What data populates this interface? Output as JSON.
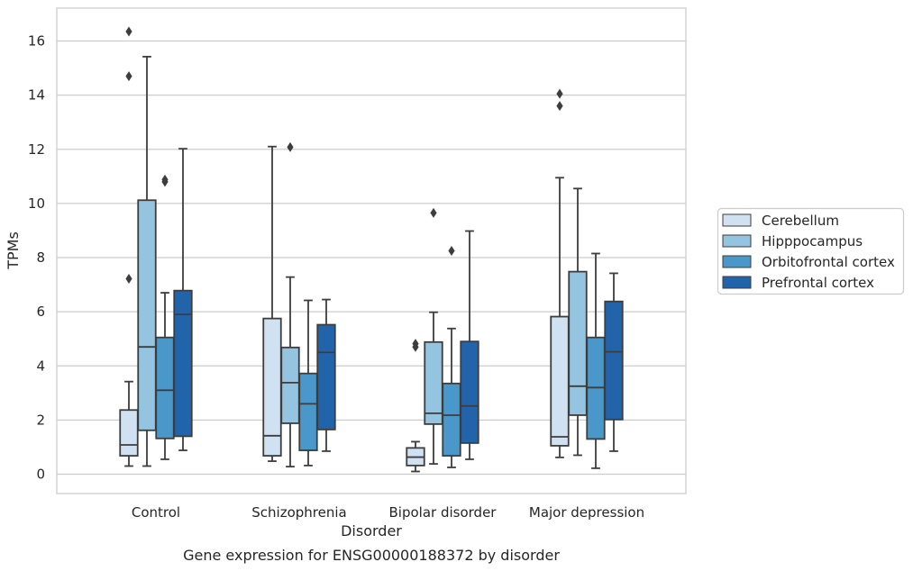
{
  "chart_data": {
    "type": "box",
    "title": "",
    "caption": "Gene expression for ENSG00000188372 by disorder",
    "xlabel": "Disorder",
    "ylabel": "TPMs",
    "categories": [
      "Control",
      "Schizophrenia",
      "Bipolar disorder",
      "Major depression"
    ],
    "ylim": [
      -0.7,
      17.2
    ],
    "yticks": [
      0,
      2,
      4,
      6,
      8,
      10,
      12,
      14,
      16
    ],
    "grid": "horizontal",
    "legend_position": "right",
    "series": [
      {
        "name": "Cerebellum",
        "color": "#d0e1f2",
        "boxes": [
          {
            "whislo": 0.3,
            "q1": 0.68,
            "med": 1.08,
            "q3": 2.37,
            "whishi": 3.42,
            "fliers": [
              7.22,
              14.7,
              16.35
            ]
          },
          {
            "whislo": 0.48,
            "q1": 0.68,
            "med": 1.42,
            "q3": 5.75,
            "whishi": 12.1,
            "fliers": []
          },
          {
            "whislo": 0.1,
            "q1": 0.32,
            "med": 0.63,
            "q3": 0.97,
            "whishi": 1.2,
            "fliers": [
              4.7,
              4.82
            ]
          },
          {
            "whislo": 0.62,
            "q1": 1.05,
            "med": 1.38,
            "q3": 5.82,
            "whishi": 10.95,
            "fliers": [
              13.6,
              14.05
            ]
          }
        ]
      },
      {
        "name": "Hipppocampus",
        "color": "#94c4df",
        "boxes": [
          {
            "whislo": 0.3,
            "q1": 1.62,
            "med": 4.7,
            "q3": 10.12,
            "whishi": 15.42,
            "fliers": []
          },
          {
            "whislo": 0.28,
            "q1": 1.88,
            "med": 3.38,
            "q3": 4.68,
            "whishi": 7.28,
            "fliers": [
              12.08
            ]
          },
          {
            "whislo": 0.38,
            "q1": 1.85,
            "med": 2.25,
            "q3": 4.88,
            "whishi": 5.98,
            "fliers": [
              9.65
            ]
          },
          {
            "whislo": 0.7,
            "q1": 2.18,
            "med": 3.25,
            "q3": 7.48,
            "whishi": 10.55,
            "fliers": []
          }
        ]
      },
      {
        "name": "Orbitofrontal cortex",
        "color": "#4a98c9",
        "boxes": [
          {
            "whislo": 0.55,
            "q1": 1.32,
            "med": 3.1,
            "q3": 5.05,
            "whishi": 6.7,
            "fliers": [
              10.8,
              10.88
            ]
          },
          {
            "whislo": 0.32,
            "q1": 0.88,
            "med": 2.6,
            "q3": 3.72,
            "whishi": 6.42,
            "fliers": []
          },
          {
            "whislo": 0.25,
            "q1": 0.68,
            "med": 2.18,
            "q3": 3.35,
            "whishi": 5.38,
            "fliers": [
              8.25
            ]
          },
          {
            "whislo": 0.22,
            "q1": 1.3,
            "med": 3.2,
            "q3": 5.05,
            "whishi": 8.15,
            "fliers": []
          }
        ]
      },
      {
        "name": "Prefrontal cortex",
        "color": "#2264aa",
        "boxes": [
          {
            "whislo": 0.88,
            "q1": 1.4,
            "med": 5.9,
            "q3": 6.78,
            "whishi": 12.02,
            "fliers": []
          },
          {
            "whislo": 0.85,
            "q1": 1.65,
            "med": 4.5,
            "q3": 5.52,
            "whishi": 6.45,
            "fliers": []
          },
          {
            "whislo": 0.55,
            "q1": 1.15,
            "med": 2.52,
            "q3": 4.9,
            "whishi": 8.98,
            "fliers": []
          },
          {
            "whislo": 0.85,
            "q1": 2.02,
            "med": 4.52,
            "q3": 6.38,
            "whishi": 7.42,
            "fliers": []
          }
        ]
      }
    ]
  }
}
